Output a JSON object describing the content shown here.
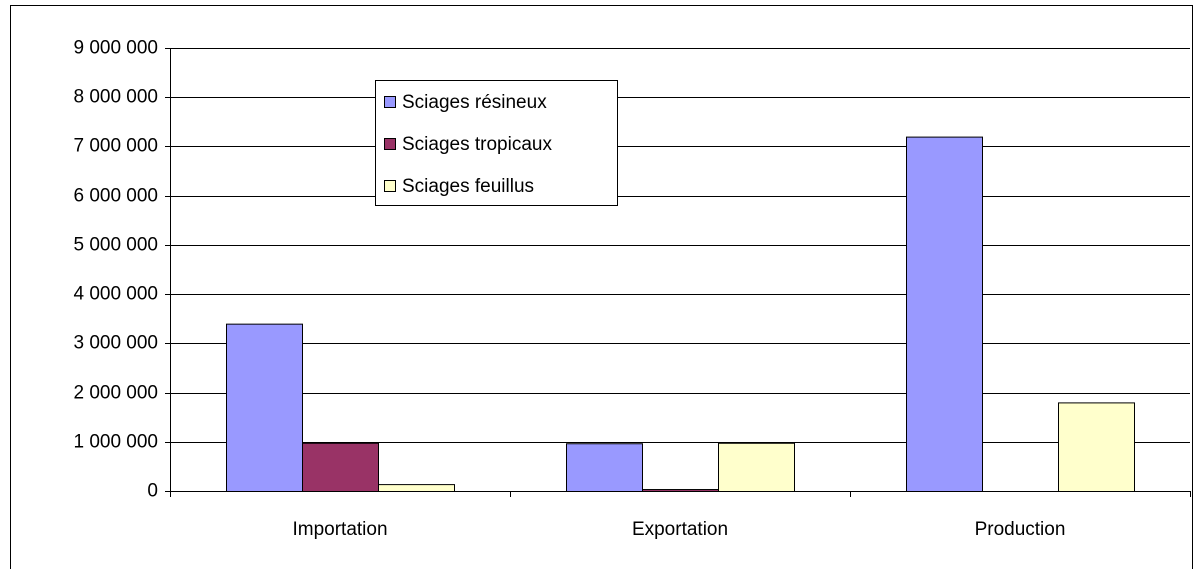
{
  "chart_data": {
    "type": "bar",
    "categories": [
      "Importation",
      "Exportation",
      "Production"
    ],
    "series": [
      {
        "name": "Sciages résineux",
        "color": "#9999ff",
        "values": [
          3400000,
          970000,
          7200000
        ]
      },
      {
        "name": "Sciages tropicaux",
        "color": "#993366",
        "values": [
          980000,
          40000,
          0
        ]
      },
      {
        "name": "Sciages feuillus",
        "color": "#ffffcc",
        "values": [
          140000,
          980000,
          1800000
        ]
      }
    ],
    "ylim": [
      0,
      9000000
    ],
    "yticks": [
      0,
      {
        "value": 1000000,
        "label": "1 000 000"
      },
      {
        "value": 2000000,
        "label": "2 000 000"
      },
      {
        "value": 3000000,
        "label": "3 000 000"
      },
      {
        "value": 4000000,
        "label": "4 000 000"
      },
      {
        "value": 5000000,
        "label": "5 000 000"
      },
      {
        "value": 6000000,
        "label": "6 000 000"
      },
      {
        "value": 7000000,
        "label": "7 000 000"
      },
      {
        "value": 8000000,
        "label": "8 000 000"
      },
      {
        "value": 9000000,
        "label": "9 000 000"
      }
    ],
    "grid": true
  }
}
